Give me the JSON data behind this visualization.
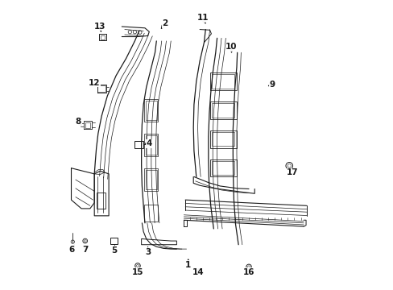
{
  "bg_color": "#ffffff",
  "line_color": "#1a1a1a",
  "fig_width": 4.89,
  "fig_height": 3.6,
  "dpi": 100,
  "label_positions": {
    "1": [
      0.47,
      0.085,
      0.47,
      0.115
    ],
    "2": [
      0.39,
      0.92,
      0.37,
      0.895
    ],
    "3": [
      0.33,
      0.13,
      0.33,
      0.158
    ],
    "4": [
      0.335,
      0.505,
      0.31,
      0.505
    ],
    "5": [
      0.215,
      0.135,
      0.215,
      0.158
    ],
    "6": [
      0.065,
      0.138,
      0.082,
      0.162
    ],
    "7": [
      0.115,
      0.138,
      0.115,
      0.162
    ],
    "8": [
      0.09,
      0.58,
      0.108,
      0.558
    ],
    "9": [
      0.76,
      0.71,
      0.738,
      0.7
    ],
    "10": [
      0.62,
      0.84,
      0.62,
      0.81
    ],
    "11": [
      0.52,
      0.94,
      0.535,
      0.912
    ],
    "12": [
      0.145,
      0.715,
      0.165,
      0.7
    ],
    "13": [
      0.165,
      0.91,
      0.17,
      0.882
    ],
    "14": [
      0.505,
      0.06,
      0.505,
      0.082
    ],
    "15": [
      0.295,
      0.06,
      0.295,
      0.082
    ],
    "16": [
      0.68,
      0.06,
      0.68,
      0.082
    ],
    "17": [
      0.83,
      0.405,
      0.82,
      0.428
    ]
  }
}
